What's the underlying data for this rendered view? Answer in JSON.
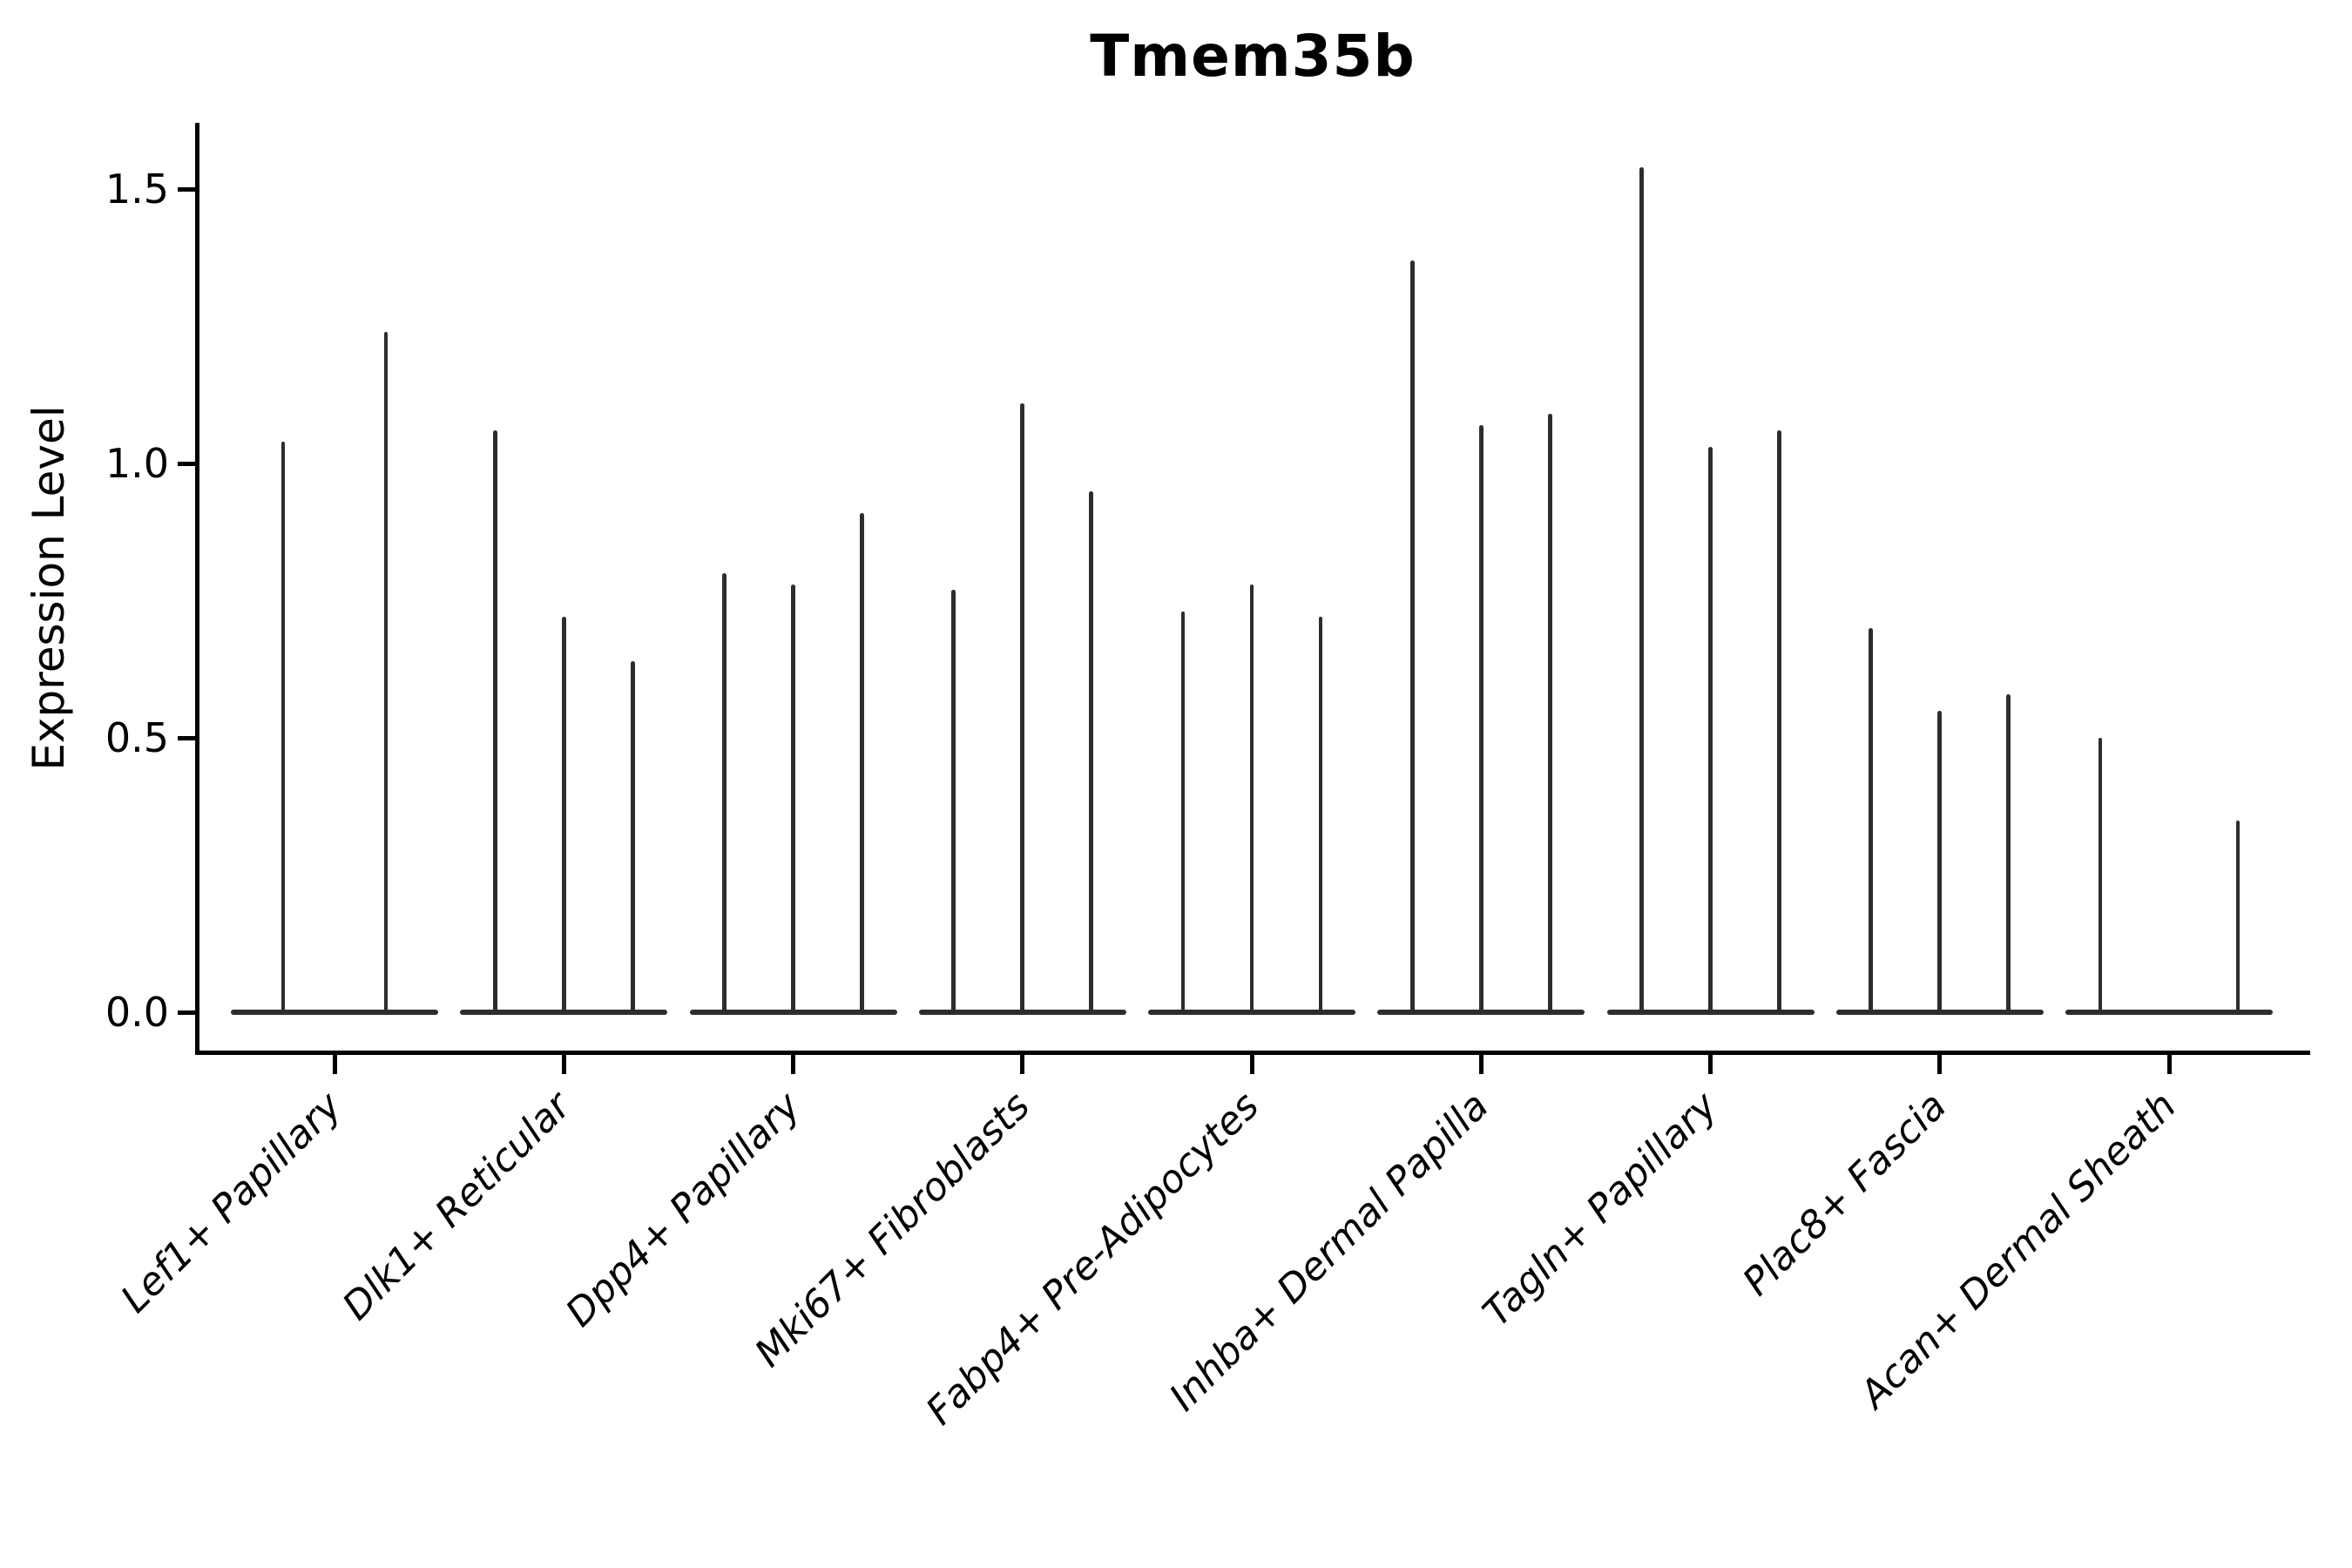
{
  "title": "Tmem35b",
  "chart_data": {
    "type": "violin",
    "title": "Tmem35b",
    "xlabel": "",
    "ylabel": "Expression Level",
    "ylim": [
      -0.075,
      1.62
    ],
    "ytick_values": [
      0.0,
      0.5,
      1.0,
      1.5
    ],
    "ytick_labels": [
      "0.0",
      "0.5",
      "1.0",
      "1.5"
    ],
    "grid": false,
    "legend": "none",
    "background": "#ffffff",
    "colors": {
      "violin": "#2d2d2d",
      "axis": "#000000",
      "text": "#000000"
    },
    "description": "Grouped violin plot of sparse single-cell expression; each category shows flat violin bodies at 0 with thin spikes reaching the maximum expression of each violin.",
    "categories": [
      "Lef1+ Papillary",
      "Dlk1+ Reticular",
      "Dpp4+ Papillary",
      "Mki67+ Fibroblasts",
      "Fabp4+ Pre-Adipocytes",
      "Inhba+ Dermal Papilla",
      "Tagln+ Papillary",
      "Plac8+ Fascia",
      "Acan+ Dermal Sheath"
    ],
    "groups": [
      {
        "category": "Lef1+ Papillary",
        "n_slots": 2,
        "spikes": [
          {
            "slot": 0,
            "value": 1.04
          },
          {
            "slot": 1,
            "value": 1.24
          }
        ]
      },
      {
        "category": "Dlk1+ Reticular",
        "n_slots": 3,
        "spikes": [
          {
            "slot": 0,
            "value": 1.06
          },
          {
            "slot": 1,
            "value": 0.72
          },
          {
            "slot": 2,
            "value": 0.64
          }
        ]
      },
      {
        "category": "Dpp4+ Papillary",
        "n_slots": 3,
        "spikes": [
          {
            "slot": 0,
            "value": 0.8
          },
          {
            "slot": 1,
            "value": 0.78
          },
          {
            "slot": 2,
            "value": 0.91
          }
        ]
      },
      {
        "category": "Mki67+ Fibroblasts",
        "n_slots": 3,
        "spikes": [
          {
            "slot": 0,
            "value": 0.77
          },
          {
            "slot": 1,
            "value": 1.11
          },
          {
            "slot": 2,
            "value": 0.95
          }
        ]
      },
      {
        "category": "Fabp4+ Pre-Adipocytes",
        "n_slots": 3,
        "spikes": [
          {
            "slot": 0,
            "value": 0.73
          },
          {
            "slot": 1,
            "value": 0.78
          },
          {
            "slot": 2,
            "value": 0.72
          }
        ]
      },
      {
        "category": "Inhba+ Dermal Papilla",
        "n_slots": 3,
        "spikes": [
          {
            "slot": 0,
            "value": 1.37
          },
          {
            "slot": 1,
            "value": 1.07
          },
          {
            "slot": 2,
            "value": 1.09
          }
        ]
      },
      {
        "category": "Tagln+ Papillary",
        "n_slots": 3,
        "spikes": [
          {
            "slot": 0,
            "value": 1.54
          },
          {
            "slot": 1,
            "value": 1.03
          },
          {
            "slot": 2,
            "value": 1.06
          }
        ]
      },
      {
        "category": "Plac8+ Fascia",
        "n_slots": 3,
        "spikes": [
          {
            "slot": 0,
            "value": 0.7
          },
          {
            "slot": 1,
            "value": 0.55
          },
          {
            "slot": 2,
            "value": 0.58
          }
        ]
      },
      {
        "category": "Acan+ Dermal Sheath",
        "n_slots": 3,
        "spikes": [
          {
            "slot": 0,
            "value": 0.5
          },
          {
            "slot": 2,
            "value": 0.35
          }
        ]
      }
    ]
  }
}
